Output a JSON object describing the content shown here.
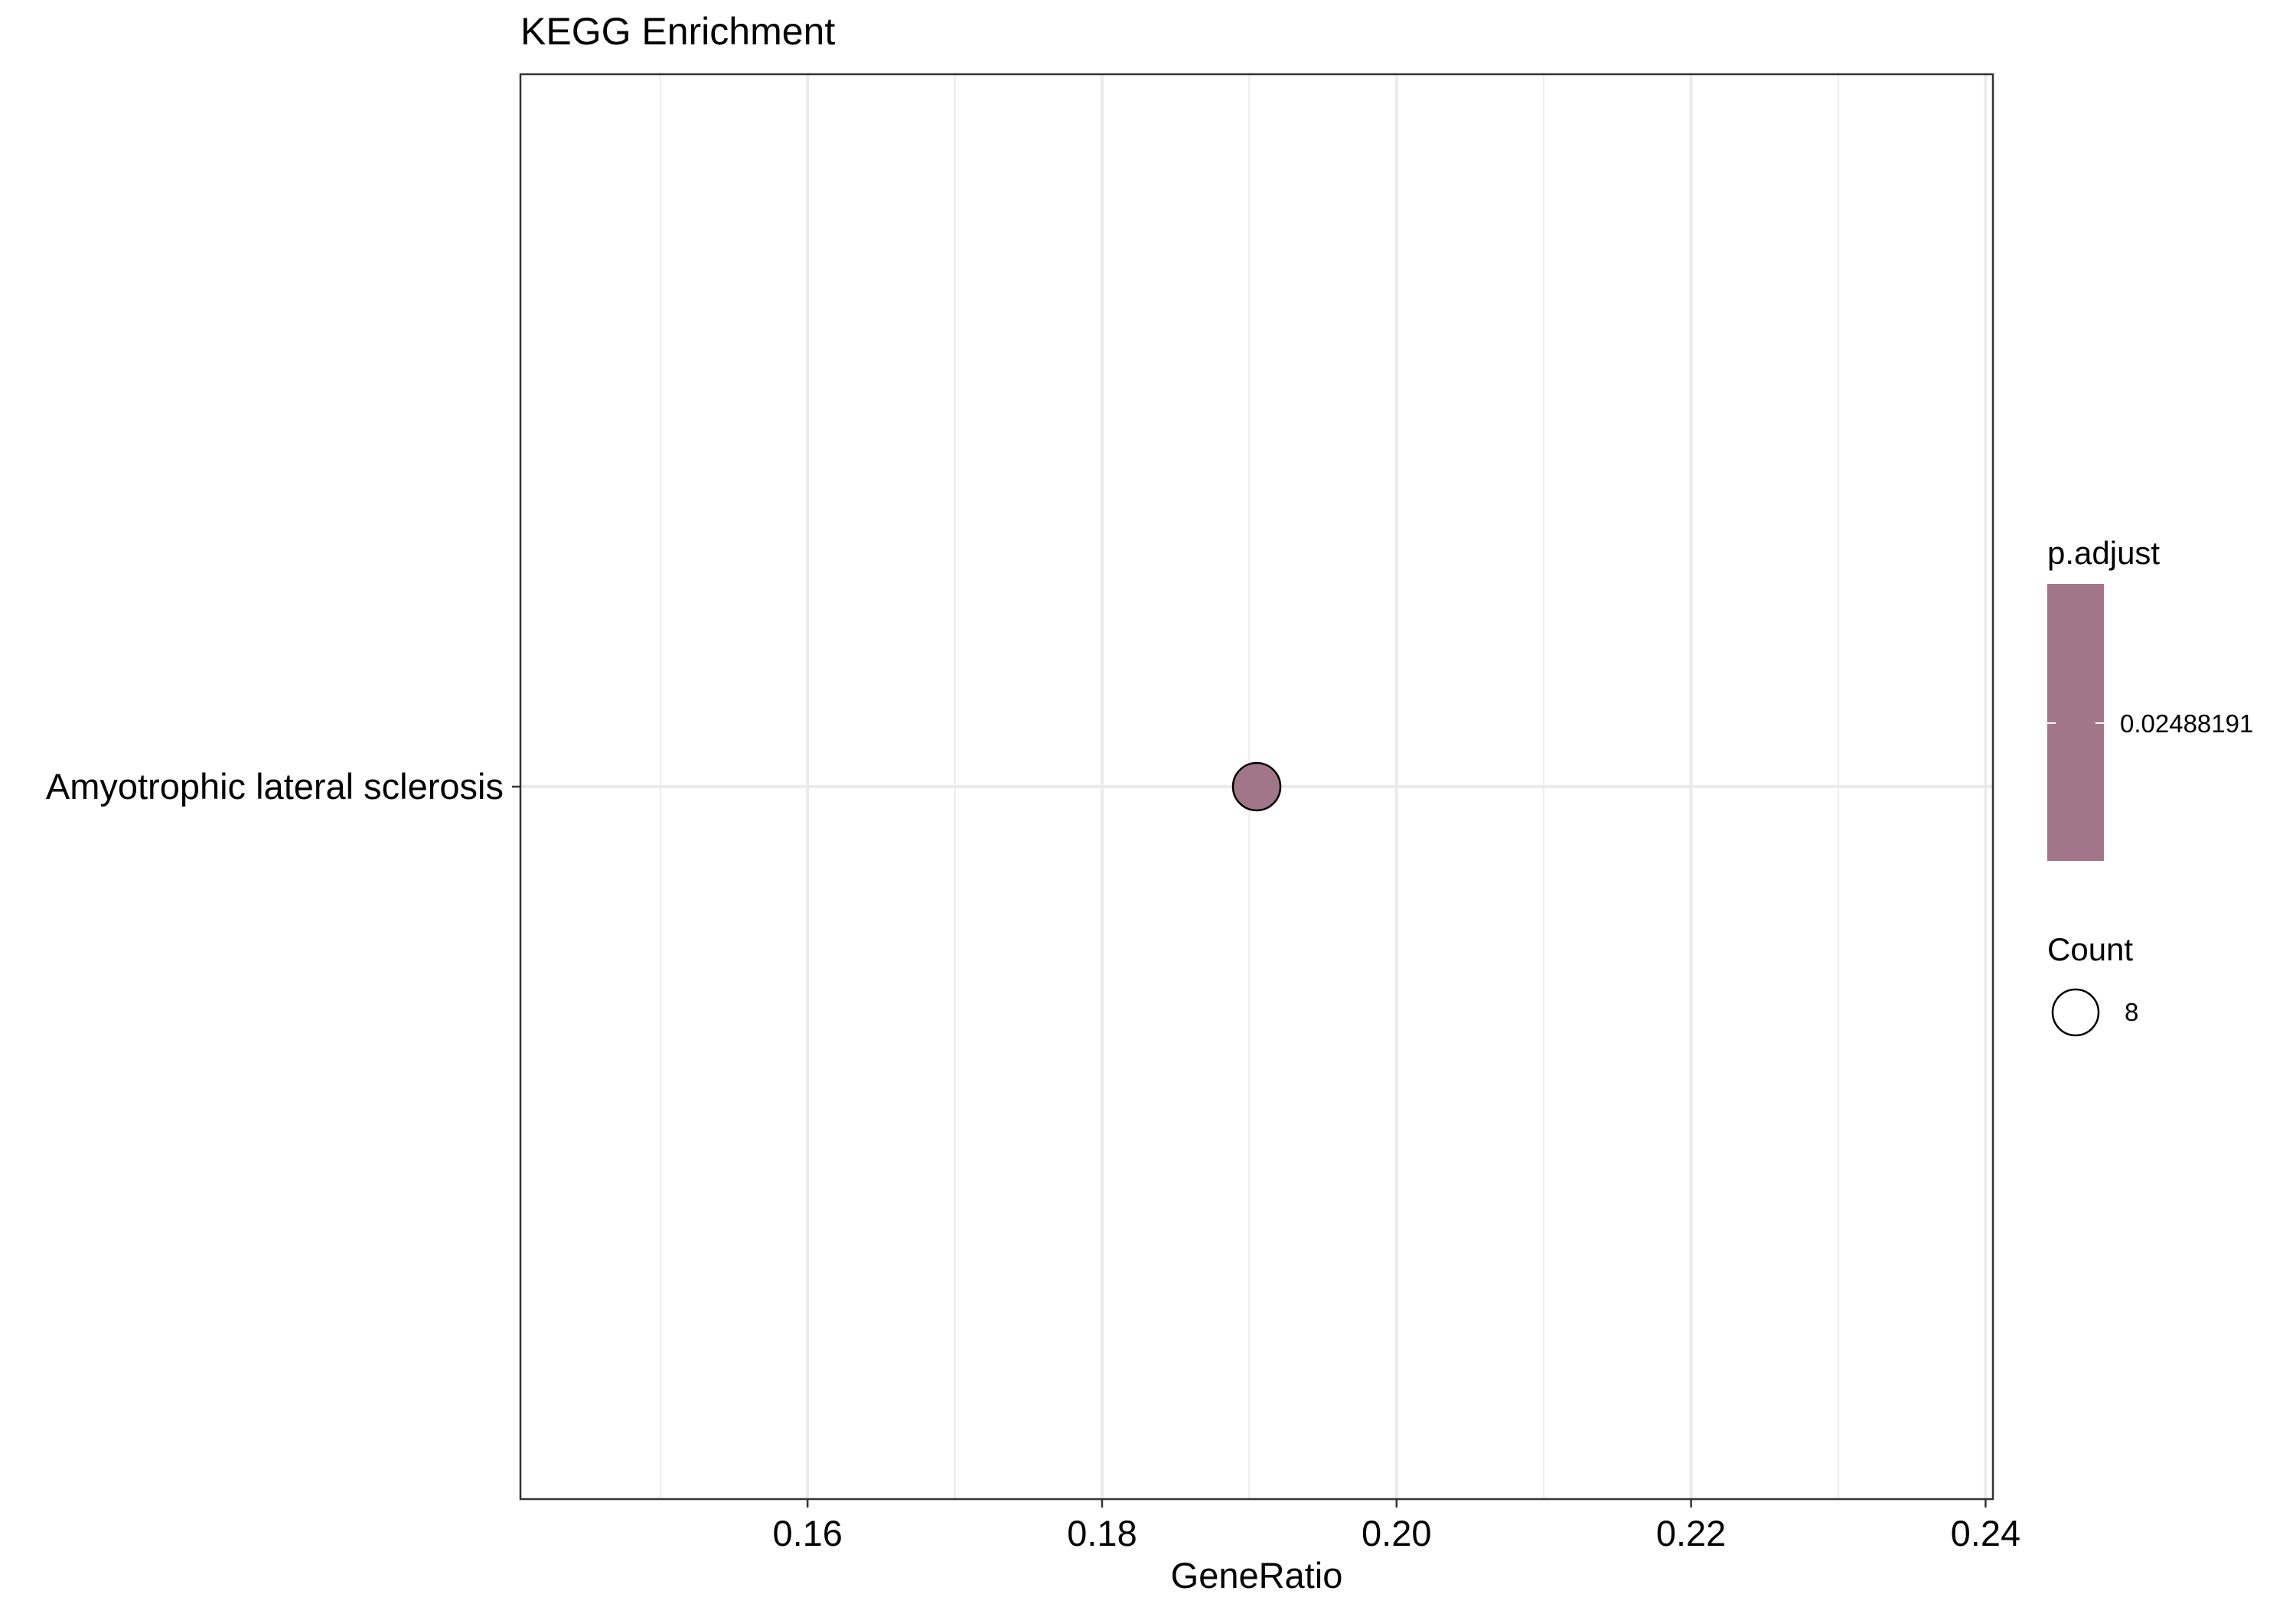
{
  "chart_data": {
    "type": "scatter",
    "title": "KEGG Enrichment",
    "xlabel": "GeneRatio",
    "ylabel": "",
    "xlim": [
      0.1405,
      0.2405
    ],
    "x_ticks": [
      0.16,
      0.18,
      0.2,
      0.22,
      0.24
    ],
    "x_tick_labels": [
      "0.16",
      "0.18",
      "0.20",
      "0.22",
      "0.24"
    ],
    "grid": true,
    "categories": [
      "Amyotrophic lateral sclerosis"
    ],
    "points": [
      {
        "category": "Amyotrophic lateral sclerosis",
        "x": 0.1905,
        "count": 8,
        "p_adjust": 0.02488191,
        "color": "#a27689"
      }
    ],
    "legend": {
      "placement": "right",
      "color_title": "p.adjust",
      "color_label": "0.02488191",
      "color": "#a27689",
      "size_title": "Count",
      "size_label": "8"
    }
  }
}
